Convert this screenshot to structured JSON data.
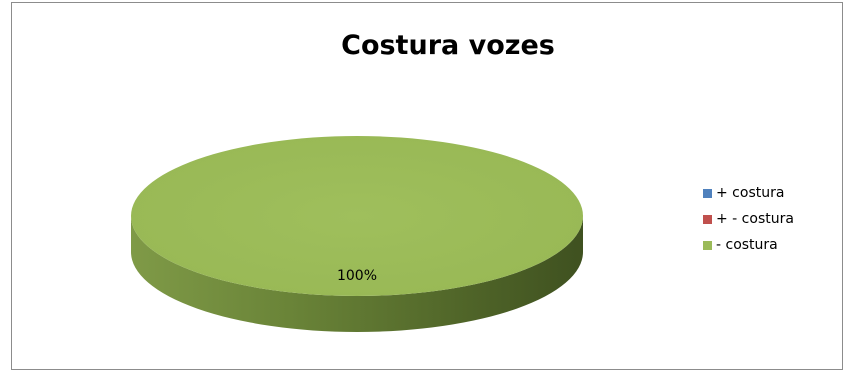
{
  "chart_data": {
    "type": "pie",
    "title": "Costura vozes",
    "categories": [
      "+ costura",
      "+ - costura",
      "- costura"
    ],
    "values": [
      0,
      0,
      100
    ],
    "data_labels": [
      "",
      "",
      "100%"
    ],
    "colors": [
      "#4f81bd",
      "#c0504d",
      "#9bbb59"
    ],
    "legend": "right",
    "style": "3d"
  }
}
